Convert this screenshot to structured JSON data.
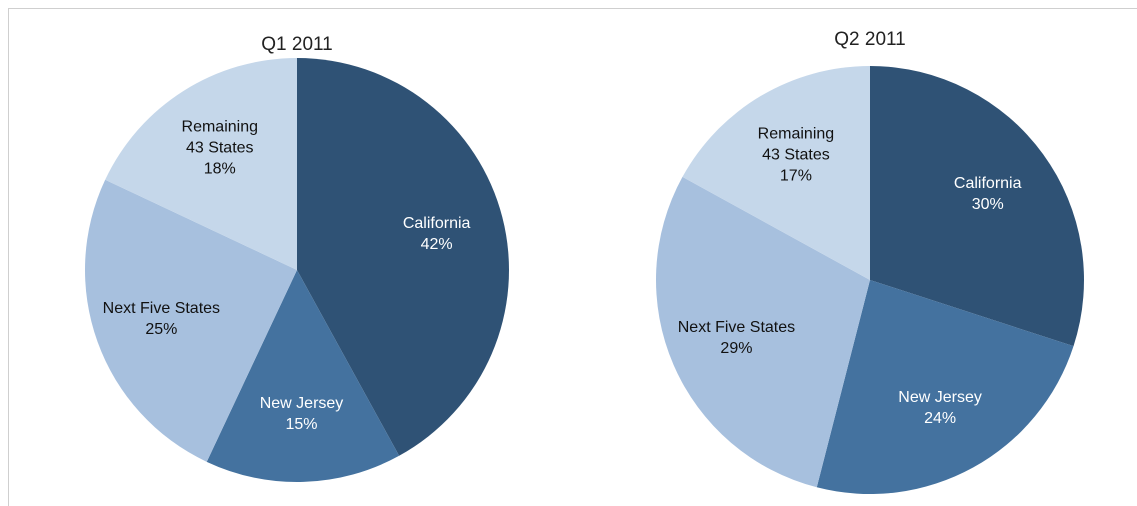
{
  "chart_data": [
    {
      "type": "pie",
      "title": "Q1 2011",
      "categories": [
        "California",
        "New Jersey",
        "Next Five States",
        "Remaining\n43 States"
      ],
      "values": [
        42,
        15,
        25,
        18
      ],
      "value_labels": [
        "42%",
        "15%",
        "25%",
        "18%"
      ],
      "colors": [
        "#2f5275",
        "#44729f",
        "#a7c0de",
        "#c5d7ea"
      ]
    },
    {
      "type": "pie",
      "title": "Q2 2011",
      "categories": [
        "California",
        "New Jersey",
        "Next Five States",
        "Remaining\n43 States"
      ],
      "values": [
        30,
        24,
        29,
        17
      ],
      "value_labels": [
        "30%",
        "24%",
        "29%",
        "17%"
      ],
      "colors": [
        "#2f5275",
        "#44729f",
        "#a7c0de",
        "#c5d7ea"
      ]
    }
  ]
}
